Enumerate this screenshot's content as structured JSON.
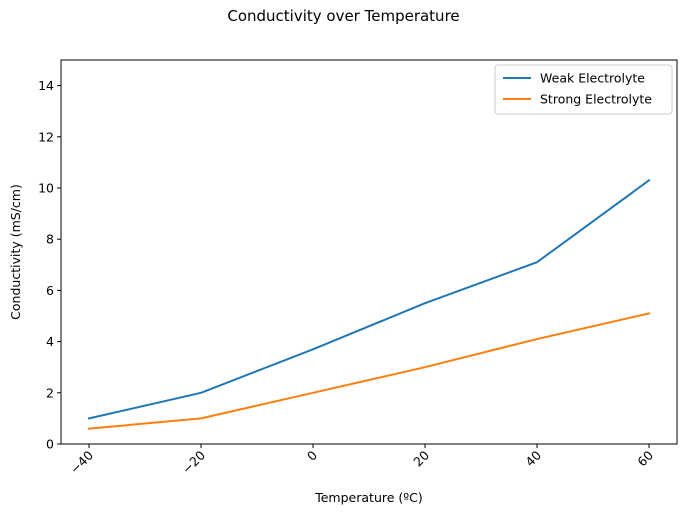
{
  "chart_data": {
    "type": "line",
    "title": "Conductivity over Temperature",
    "xlabel": "Temperature (ºC)",
    "ylabel": "Conductivity (mS/cm)",
    "x": [
      -40,
      -20,
      0,
      20,
      40,
      60
    ],
    "x_tick_labels": [
      "−40",
      "−20",
      "0",
      "20",
      "40",
      "60"
    ],
    "x_tick_rotation": 45,
    "y_ticks": [
      0,
      2,
      4,
      6,
      8,
      10,
      12,
      14
    ],
    "y_tick_labels": [
      "0",
      "2",
      "4",
      "6",
      "8",
      "10",
      "12",
      "14"
    ],
    "xlim": [
      -45,
      65
    ],
    "ylim": [
      0,
      15
    ],
    "grid": false,
    "legend_position": "top-right",
    "series": [
      {
        "name": "Weak Electrolyte",
        "color": "#1f77b4",
        "values": [
          1.0,
          2.0,
          3.7,
          5.5,
          7.1,
          10.3
        ]
      },
      {
        "name": "Strong Electrolyte",
        "color": "#ff7f0e",
        "values": [
          0.6,
          1.0,
          2.0,
          3.0,
          4.1,
          5.1
        ]
      }
    ]
  }
}
